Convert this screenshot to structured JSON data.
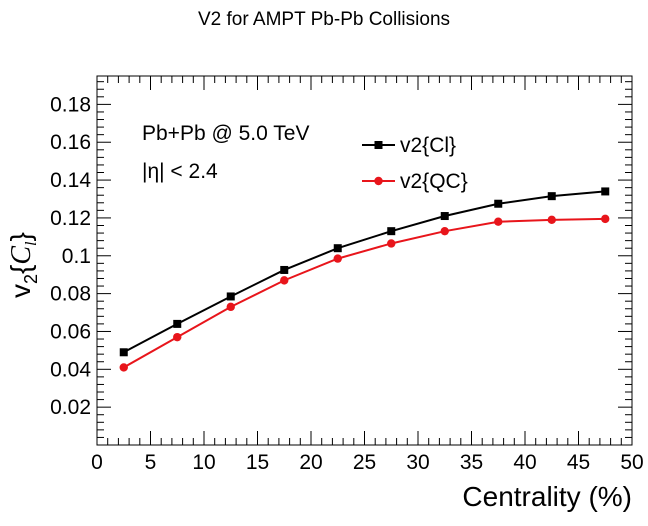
{
  "chart_data": {
    "type": "line",
    "title": "V2 for AMPT Pb-Pb Collisions",
    "xlabel": "Centrality (%)",
    "ylabel": "v2{Cl}",
    "xlim": [
      0,
      50
    ],
    "ylim": [
      0.0,
      0.195
    ],
    "xticks": [
      0,
      5,
      10,
      15,
      20,
      25,
      30,
      35,
      40,
      45,
      50
    ],
    "yticks": [
      0.02,
      0.04,
      0.06,
      0.08,
      0.1,
      0.12,
      0.14,
      0.16,
      0.18
    ],
    "grid": false,
    "legend_position": "top-right",
    "annotations": [
      "Pb+Pb @ 5.0 TeV",
      "|η| < 2.4"
    ],
    "x": [
      2.5,
      7.5,
      12.5,
      17.5,
      22.5,
      27.5,
      32.5,
      37.5,
      42.5,
      47.5
    ],
    "series": [
      {
        "name": "v2{Cl}",
        "color": "#000000",
        "marker": "square",
        "values": [
          0.049,
          0.064,
          0.0785,
          0.0925,
          0.104,
          0.113,
          0.121,
          0.1275,
          0.1315,
          0.134
        ]
      },
      {
        "name": "v2{QC}",
        "color": "#e8151b",
        "marker": "circle",
        "values": [
          0.041,
          0.057,
          0.073,
          0.087,
          0.0985,
          0.1065,
          0.113,
          0.118,
          0.119,
          0.1195
        ]
      }
    ]
  }
}
